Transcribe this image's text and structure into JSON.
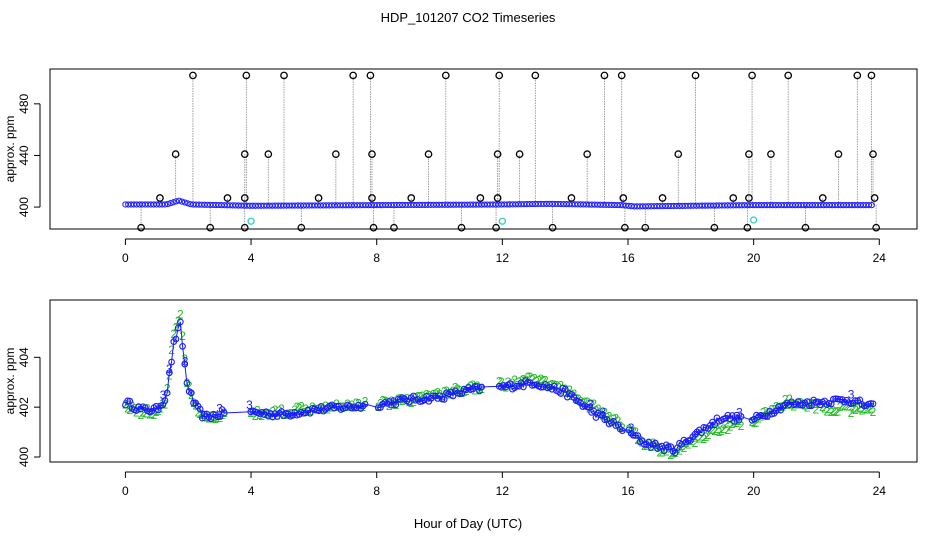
{
  "figure": {
    "title": "HDP_101207  CO2 Timeseries",
    "xlabel": "Hour of Day (UTC)"
  },
  "colors": {
    "axis": "#000000",
    "black_points": "#000000",
    "blue_points": "#1a1aff",
    "cyan_points": "#33cccc",
    "green_points": "#22bb22",
    "spikes": "#888888"
  },
  "chart_data": [
    {
      "type": "scatter",
      "name": "top-panel",
      "ylabel": "approx. ppm",
      "xlim": [
        -2.4,
        25.2
      ],
      "ylim": [
        383,
        507
      ],
      "xticks": [
        0,
        4,
        8,
        12,
        16,
        20,
        24
      ],
      "yticks": [
        400,
        440,
        480
      ],
      "baseline": {
        "x": [
          0,
          1.3,
          1.7,
          2.1,
          4,
          8,
          12,
          13.5,
          15.8,
          16.2,
          18,
          20,
          23.8
        ],
        "y": [
          402,
          402,
          405,
          402,
          401,
          401.5,
          402,
          402.5,
          401.5,
          400.5,
          401,
          401.5,
          401.5
        ]
      },
      "high_spikes": [
        2.15,
        3.85,
        5.05,
        7.25,
        7.8,
        10.2,
        11.9,
        13.05,
        15.25,
        15.8,
        18.15,
        19.95,
        21.1,
        23.3,
        23.75
      ],
      "mid_spikes": [
        1.6,
        3.8,
        4.55,
        6.7,
        7.85,
        9.65,
        11.85,
        12.55,
        14.7,
        17.6,
        19.85,
        20.55,
        22.7,
        23.8
      ],
      "low_spikes": [
        1.1,
        3.25,
        3.8,
        6.15,
        7.85,
        9.1,
        11.3,
        11.85,
        14.2,
        15.85,
        17.1,
        19.35,
        19.85,
        22.2,
        23.85
      ],
      "dip_points": [
        0.5,
        2.7,
        3.8,
        5.6,
        7.9,
        8.55,
        10.7,
        11.8,
        13.6,
        15.9,
        16.55,
        18.75,
        19.8,
        21.65,
        23.9
      ],
      "dip_value": 384,
      "low_value": 407,
      "mid_value": 441,
      "high_value": 502,
      "cyan_points": {
        "x": [
          4.0,
          12.0,
          20.0
        ],
        "y": [
          389,
          389,
          390
        ]
      }
    },
    {
      "type": "scatter",
      "name": "bottom-panel",
      "ylabel": "approx. ppm",
      "xlim": [
        -2.4,
        25.2
      ],
      "ylim": [
        399.8,
        406.3
      ],
      "xticks": [
        0,
        4,
        8,
        12,
        16,
        20,
        24
      ],
      "yticks": [
        400,
        402,
        404
      ],
      "gap_ranges": [
        [
          3.15,
          3.95
        ],
        [
          7.7,
          8.0
        ],
        [
          11.35,
          11.85
        ],
        [
          15.85,
          16.0
        ],
        [
          19.65,
          19.95
        ],
        [
          23.85,
          24.0
        ]
      ],
      "series": [
        {
          "name": "blue-circles",
          "marker": "o",
          "x": [
            0,
            0.5,
            1.0,
            1.3,
            1.55,
            1.75,
            1.95,
            2.2,
            2.5,
            3.0,
            3.5,
            4.0,
            5,
            6,
            7,
            8,
            9,
            10,
            11,
            12,
            13,
            14,
            15,
            16,
            16.5,
            17,
            17.5,
            18,
            19,
            20,
            21,
            22,
            23,
            23.8
          ],
          "y": [
            402.2,
            401.9,
            401.9,
            402.4,
            404.6,
            405.3,
            403.0,
            402.1,
            401.6,
            401.7,
            402.1,
            401.8,
            401.7,
            401.9,
            402.0,
            402.1,
            402.3,
            402.4,
            402.7,
            402.8,
            403.0,
            402.6,
            401.7,
            401.0,
            400.6,
            400.4,
            400.3,
            400.8,
            401.6,
            401.5,
            402.1,
            402.2,
            402.3,
            402.0
          ]
        },
        {
          "name": "green-labels",
          "marker": "2",
          "x": [
            0,
            0.5,
            1.0,
            1.3,
            1.55,
            1.75,
            1.95,
            2.2,
            2.5,
            3.0,
            3.5,
            4.0,
            5,
            6,
            7,
            8,
            9,
            10,
            11,
            12,
            13,
            14,
            15,
            16,
            16.5,
            17,
            17.5,
            18,
            19,
            20,
            21,
            22,
            23,
            23.8
          ],
          "y": [
            402.1,
            401.8,
            401.8,
            402.3,
            405.0,
            405.8,
            403.1,
            402.0,
            401.5,
            401.6,
            402.0,
            401.7,
            401.8,
            402.0,
            402.1,
            402.1,
            402.3,
            402.5,
            402.8,
            402.9,
            403.1,
            402.7,
            401.9,
            401.1,
            400.6,
            400.3,
            400.2,
            400.6,
            401.2,
            401.4,
            402.2,
            402.0,
            401.9,
            401.8
          ]
        }
      ]
    }
  ]
}
